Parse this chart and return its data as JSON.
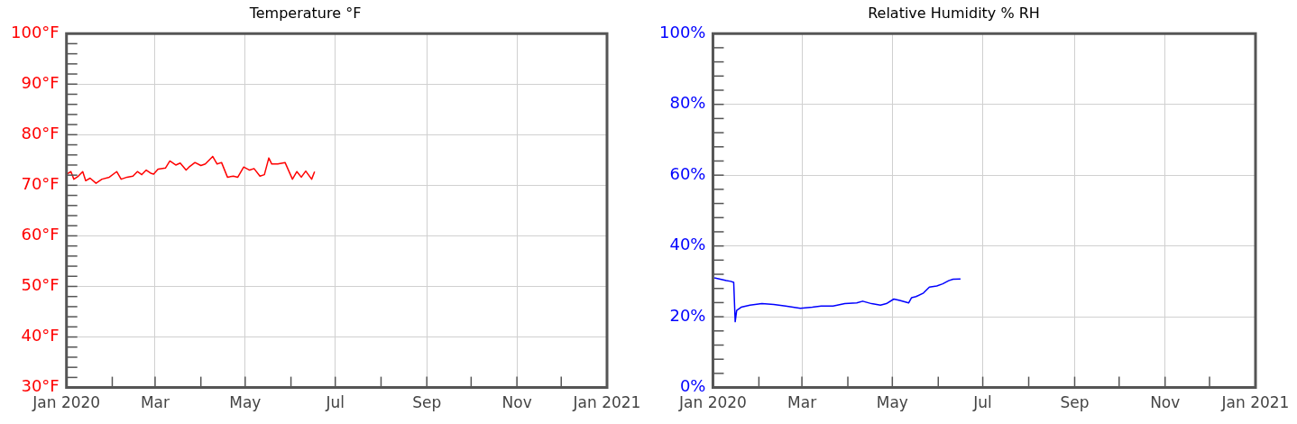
{
  "chart_data": [
    {
      "type": "line",
      "title": "Temperature °F",
      "grid": true,
      "xlim": [
        "2020-01",
        "2021-01"
      ],
      "ylim": [
        30,
        100
      ],
      "xticks": [
        {
          "value": "2020-01",
          "label": "Jan 2020"
        },
        {
          "value": "2020-02",
          "label": null
        },
        {
          "value": "2020-03",
          "label": "Mar"
        },
        {
          "value": "2020-04",
          "label": null
        },
        {
          "value": "2020-05",
          "label": "May"
        },
        {
          "value": "2020-06",
          "label": null
        },
        {
          "value": "2020-07",
          "label": "Jul"
        },
        {
          "value": "2020-08",
          "label": null
        },
        {
          "value": "2020-09",
          "label": "Sep"
        },
        {
          "value": "2020-10",
          "label": null
        },
        {
          "value": "2020-11",
          "label": "Nov"
        },
        {
          "value": "2020-12",
          "label": null
        },
        {
          "value": "2021-01",
          "label": "Jan 2021"
        }
      ],
      "yticks": [
        {
          "value": 30,
          "label": "30°F"
        },
        {
          "value": 32,
          "label": null
        },
        {
          "value": 34,
          "label": null
        },
        {
          "value": 36,
          "label": null
        },
        {
          "value": 38,
          "label": null
        },
        {
          "value": 40,
          "label": "40°F"
        },
        {
          "value": 42,
          "label": null
        },
        {
          "value": 44,
          "label": null
        },
        {
          "value": 46,
          "label": null
        },
        {
          "value": 48,
          "label": null
        },
        {
          "value": 50,
          "label": "50°F"
        },
        {
          "value": 52,
          "label": null
        },
        {
          "value": 54,
          "label": null
        },
        {
          "value": 56,
          "label": null
        },
        {
          "value": 58,
          "label": null
        },
        {
          "value": 60,
          "label": "60°F"
        },
        {
          "value": 62,
          "label": null
        },
        {
          "value": 64,
          "label": null
        },
        {
          "value": 66,
          "label": null
        },
        {
          "value": 68,
          "label": null
        },
        {
          "value": 70,
          "label": "70°F"
        },
        {
          "value": 72,
          "label": null
        },
        {
          "value": 74,
          "label": null
        },
        {
          "value": 76,
          "label": null
        },
        {
          "value": 78,
          "label": null
        },
        {
          "value": 80,
          "label": "80°F"
        },
        {
          "value": 82,
          "label": null
        },
        {
          "value": 84,
          "label": null
        },
        {
          "value": 86,
          "label": null
        },
        {
          "value": 88,
          "label": null
        },
        {
          "value": 90,
          "label": "90°F"
        },
        {
          "value": 92,
          "label": null
        },
        {
          "value": 94,
          "label": null
        },
        {
          "value": 96,
          "label": null
        },
        {
          "value": 98,
          "label": null
        },
        {
          "value": 100,
          "label": "100°F"
        }
      ],
      "x": [
        "2020-01-01",
        "2020-01-04",
        "2020-01-06",
        "2020-01-09",
        "2020-01-12",
        "2020-01-14",
        "2020-01-17",
        "2020-01-21",
        "2020-01-25",
        "2020-01-30",
        "2020-02-04",
        "2020-02-07",
        "2020-02-11",
        "2020-02-15",
        "2020-02-18",
        "2020-02-21",
        "2020-02-24",
        "2020-02-27",
        "2020-02-29",
        "2020-03-03",
        "2020-03-08",
        "2020-03-11",
        "2020-03-15",
        "2020-03-18",
        "2020-03-22",
        "2020-03-24",
        "2020-03-28",
        "2020-04-01",
        "2020-04-04",
        "2020-04-09",
        "2020-04-12",
        "2020-04-15",
        "2020-04-19",
        "2020-04-23",
        "2020-04-26",
        "2020-04-30",
        "2020-05-04",
        "2020-05-07",
        "2020-05-11",
        "2020-05-14",
        "2020-05-17",
        "2020-05-19",
        "2020-05-23",
        "2020-05-28",
        "2020-06-02",
        "2020-06-05",
        "2020-06-08",
        "2020-06-11",
        "2020-06-15",
        "2020-06-17"
      ],
      "series": [
        {
          "color": "#ff0000",
          "values": [
            72.2,
            72.7,
            71.2,
            71.8,
            72.7,
            70.9,
            71.4,
            70.4,
            71.2,
            71.6,
            72.7,
            71.2,
            71.6,
            71.8,
            72.7,
            72.1,
            73.0,
            72.4,
            72.2,
            73.2,
            73.4,
            74.8,
            74.0,
            74.4,
            73.0,
            73.6,
            74.5,
            73.9,
            74.2,
            75.7,
            74.2,
            74.5,
            71.6,
            71.8,
            71.6,
            73.6,
            73.0,
            73.3,
            71.8,
            72.1,
            75.4,
            74.2,
            74.2,
            74.5,
            71.2,
            72.7,
            71.6,
            72.8,
            71.2,
            72.7
          ]
        }
      ]
    },
    {
      "type": "line",
      "title": "Relative Humidity % RH",
      "grid": true,
      "xlim": [
        "2020-01",
        "2021-01"
      ],
      "ylim": [
        0,
        100
      ],
      "xticks": [
        {
          "value": "2020-01",
          "label": "Jan 2020"
        },
        {
          "value": "2020-02",
          "label": null
        },
        {
          "value": "2020-03",
          "label": "Mar"
        },
        {
          "value": "2020-04",
          "label": null
        },
        {
          "value": "2020-05",
          "label": "May"
        },
        {
          "value": "2020-06",
          "label": null
        },
        {
          "value": "2020-07",
          "label": "Jul"
        },
        {
          "value": "2020-08",
          "label": null
        },
        {
          "value": "2020-09",
          "label": "Sep"
        },
        {
          "value": "2020-10",
          "label": null
        },
        {
          "value": "2020-11",
          "label": "Nov"
        },
        {
          "value": "2020-12",
          "label": null
        },
        {
          "value": "2021-01",
          "label": "Jan 2021"
        }
      ],
      "yticks": [
        {
          "value": 0,
          "label": "0%"
        },
        {
          "value": 4,
          "label": null
        },
        {
          "value": 8,
          "label": null
        },
        {
          "value": 12,
          "label": null
        },
        {
          "value": 16,
          "label": null
        },
        {
          "value": 20,
          "label": "20%"
        },
        {
          "value": 24,
          "label": null
        },
        {
          "value": 28,
          "label": null
        },
        {
          "value": 32,
          "label": null
        },
        {
          "value": 36,
          "label": null
        },
        {
          "value": 40,
          "label": "40%"
        },
        {
          "value": 44,
          "label": null
        },
        {
          "value": 48,
          "label": null
        },
        {
          "value": 52,
          "label": null
        },
        {
          "value": 56,
          "label": null
        },
        {
          "value": 60,
          "label": "60%"
        },
        {
          "value": 64,
          "label": null
        },
        {
          "value": 68,
          "label": null
        },
        {
          "value": 72,
          "label": null
        },
        {
          "value": 76,
          "label": null
        },
        {
          "value": 80,
          "label": "80%"
        },
        {
          "value": 84,
          "label": null
        },
        {
          "value": 88,
          "label": null
        },
        {
          "value": 92,
          "label": null
        },
        {
          "value": 96,
          "label": null
        },
        {
          "value": 100,
          "label": "100%"
        }
      ],
      "x": [
        "2020-01-02",
        "2020-01-06",
        "2020-01-10",
        "2020-01-13",
        "2020-01-15",
        "2020-01-16",
        "2020-01-17",
        "2020-01-20",
        "2020-01-26",
        "2020-02-03",
        "2020-02-11",
        "2020-02-19",
        "2020-02-29",
        "2020-03-08",
        "2020-03-14",
        "2020-03-22",
        "2020-03-30",
        "2020-04-07",
        "2020-04-11",
        "2020-04-17",
        "2020-04-23",
        "2020-04-27",
        "2020-05-02",
        "2020-05-06",
        "2020-05-12",
        "2020-05-14",
        "2020-05-17",
        "2020-05-22",
        "2020-05-26",
        "2020-05-31",
        "2020-06-04",
        "2020-06-08",
        "2020-06-11",
        "2020-06-16"
      ],
      "series": [
        {
          "color": "#0000ff",
          "values": [
            31.0,
            30.6,
            30.2,
            30.0,
            29.7,
            18.6,
            21.8,
            22.7,
            23.3,
            23.7,
            23.5,
            23.0,
            22.4,
            22.7,
            23.0,
            23.0,
            23.7,
            23.9,
            24.4,
            23.7,
            23.3,
            23.7,
            25.0,
            24.6,
            23.9,
            25.4,
            25.7,
            26.7,
            28.4,
            28.7,
            29.3,
            30.2,
            30.6,
            30.7
          ]
        }
      ]
    }
  ]
}
